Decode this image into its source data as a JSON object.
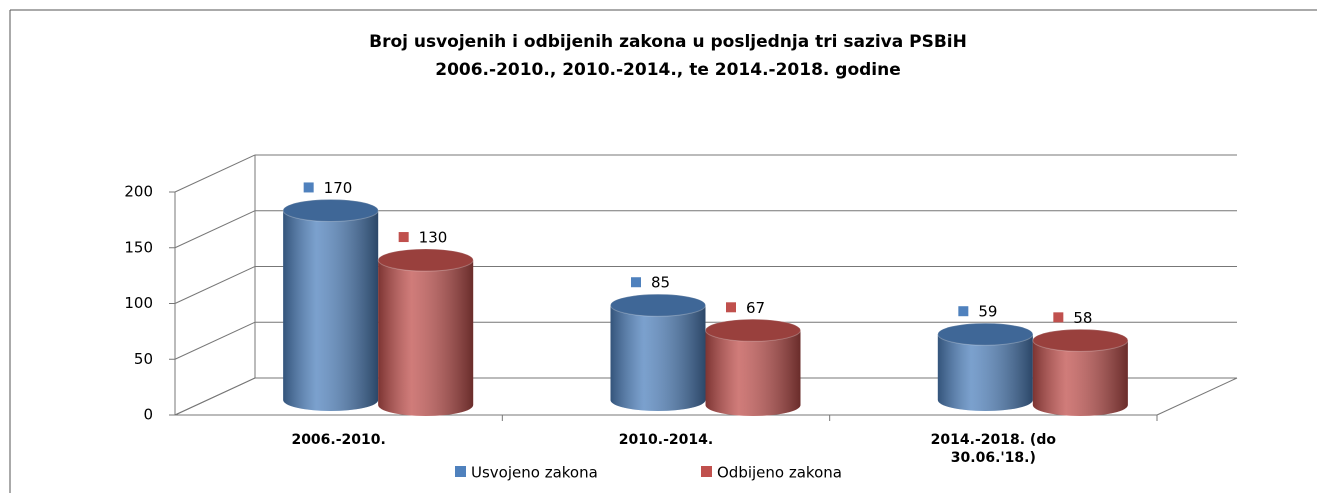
{
  "chart_data": {
    "type": "bar3d",
    "title": [
      "Broj usvojenih i odbijenih zakona u posljednja tri saziva PSBiH",
      "2006.-2010., 2010.-2014., te 2014.-2018. godine"
    ],
    "categories": [
      "2006.-2010.",
      "2010.-2014.",
      "2014.-2018. (do 30.06.'18.)"
    ],
    "series": [
      {
        "name": "Usvojeno zakona",
        "color": "#4f81bd",
        "values": [
          170,
          85,
          59
        ]
      },
      {
        "name": "Odbijeno zakona",
        "color": "#c0504d",
        "values": [
          130,
          67,
          58
        ]
      }
    ],
    "ylim": [
      0,
      200
    ],
    "yticks": [
      0,
      50,
      100,
      150,
      200
    ],
    "grid": true,
    "legend": "bottom"
  }
}
